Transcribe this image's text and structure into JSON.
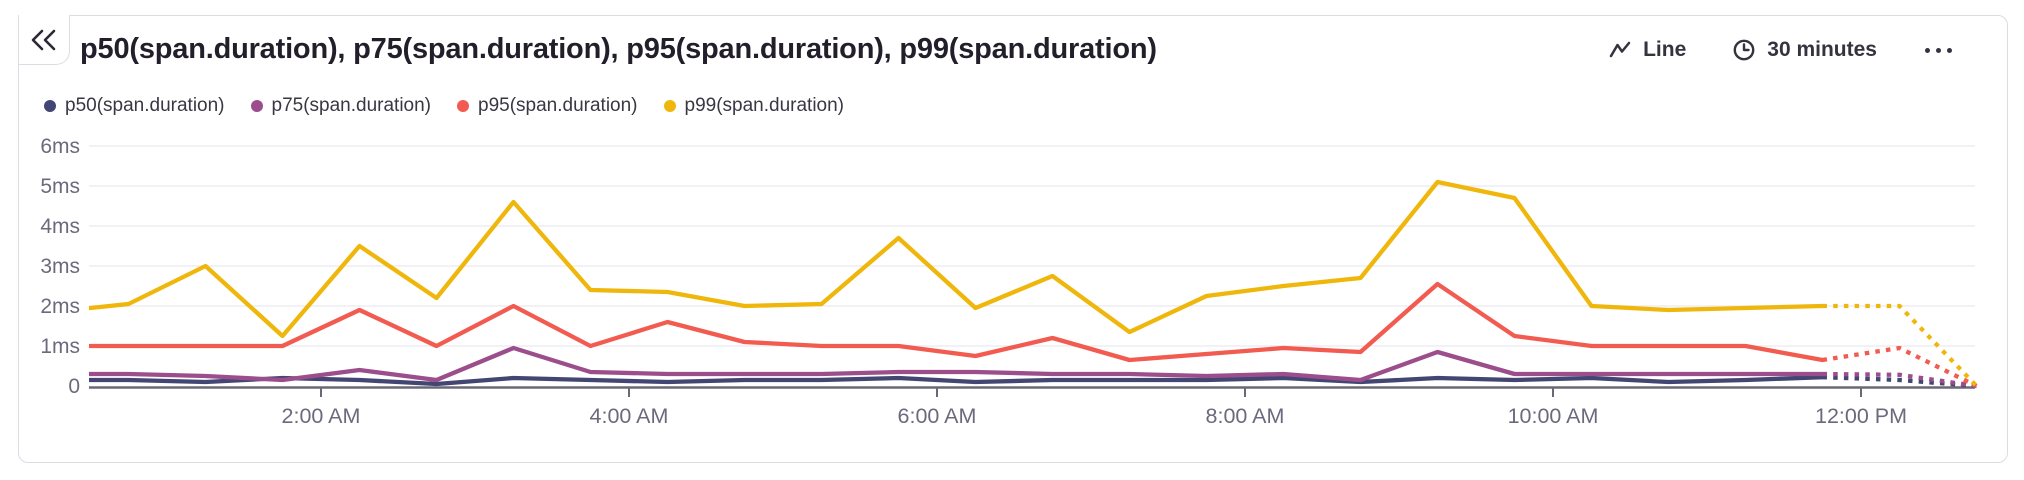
{
  "header": {
    "title": "p50(span.duration), p75(span.duration), p95(span.duration), p99(span.duration)",
    "collapse": {
      "icon": "double-chevron-left"
    },
    "controls": {
      "chart_type": {
        "icon": "line-zigzag",
        "label": "Line"
      },
      "interval": {
        "icon": "clock",
        "label": "30 minutes"
      },
      "more": {
        "icon": "ellipsis"
      }
    }
  },
  "legend": {
    "items": [
      {
        "label": "p50(span.duration)",
        "color": "#434673"
      },
      {
        "label": "p75(span.duration)",
        "color": "#9c4e8c"
      },
      {
        "label": "p95(span.duration)",
        "color": "#f25b50"
      },
      {
        "label": "p99(span.duration)",
        "color": "#efb70c"
      }
    ]
  },
  "chart_data": {
    "type": "line",
    "unit": "ms",
    "x": [
      "12:00 AM",
      "12:30 AM",
      "1:00 AM",
      "1:30 AM",
      "2:00 AM",
      "2:30 AM",
      "3:00 AM",
      "3:30 AM",
      "4:00 AM",
      "4:30 AM",
      "5:00 AM",
      "5:30 AM",
      "6:00 AM",
      "6:30 AM",
      "7:00 AM",
      "7:30 AM",
      "8:00 AM",
      "8:30 AM",
      "9:00 AM",
      "9:30 AM",
      "10:00 AM",
      "10:30 AM",
      "11:00 AM",
      "11:30 AM",
      "12:00 PM",
      "12:30 PM"
    ],
    "series": [
      {
        "name": "p50(span.duration)",
        "color": "#434673",
        "values": [
          0.15,
          0.15,
          0.1,
          0.2,
          0.15,
          0.05,
          0.2,
          0.15,
          0.1,
          0.15,
          0.15,
          0.2,
          0.1,
          0.15,
          0.15,
          0.15,
          0.2,
          0.1,
          0.2,
          0.15,
          0.2,
          0.1,
          0.15,
          0.22,
          0.15,
          0
        ]
      },
      {
        "name": "p75(span.duration)",
        "color": "#9c4e8c",
        "values": [
          0.3,
          0.3,
          0.25,
          0.15,
          0.4,
          0.15,
          0.95,
          0.35,
          0.3,
          0.3,
          0.3,
          0.35,
          0.35,
          0.3,
          0.3,
          0.25,
          0.3,
          0.15,
          0.85,
          0.3,
          0.3,
          0.3,
          0.3,
          0.3,
          0.28,
          0
        ]
      },
      {
        "name": "p95(span.duration)",
        "color": "#f25b50",
        "values": [
          1.0,
          1.0,
          1.0,
          1.0,
          1.9,
          1.0,
          2.0,
          1.0,
          1.6,
          1.1,
          1.0,
          1.0,
          0.75,
          1.2,
          0.65,
          0.8,
          0.95,
          0.85,
          2.55,
          1.25,
          1.0,
          1.0,
          1.0,
          0.65,
          0.95,
          0
        ]
      },
      {
        "name": "p99(span.duration)",
        "color": "#efb70c",
        "values": [
          1.85,
          2.05,
          3.0,
          1.25,
          3.5,
          2.2,
          4.6,
          2.4,
          2.35,
          2.0,
          2.05,
          3.7,
          1.95,
          2.75,
          1.35,
          2.25,
          2.5,
          2.7,
          5.1,
          4.7,
          2.0,
          1.9,
          1.95,
          2.0,
          2.0,
          0
        ]
      }
    ],
    "dashed_from_index": 23,
    "ylim": [
      0,
      6
    ],
    "yticks": [
      "0",
      "1ms",
      "2ms",
      "3ms",
      "4ms",
      "5ms",
      "6ms"
    ],
    "xtick_indices": [
      4,
      8,
      12,
      16,
      20,
      24
    ],
    "xtick_labels": [
      "2:00 AM",
      "4:00 AM",
      "6:00 AM",
      "8:00 AM",
      "10:00 AM",
      "12:00 PM"
    ],
    "grid": true,
    "legend_position": "top-left",
    "title": "p50(span.duration), p75(span.duration), p95(span.duration), p99(span.duration)"
  },
  "colors": {
    "border": "#dedce3",
    "axis": "#6b6876",
    "grid": "#f2f1f5",
    "tick_label": "#6d697c",
    "title_text": "#221f2b",
    "control_text": "#36333f",
    "legend_text": "#3a3744",
    "background": "#ffffff"
  }
}
